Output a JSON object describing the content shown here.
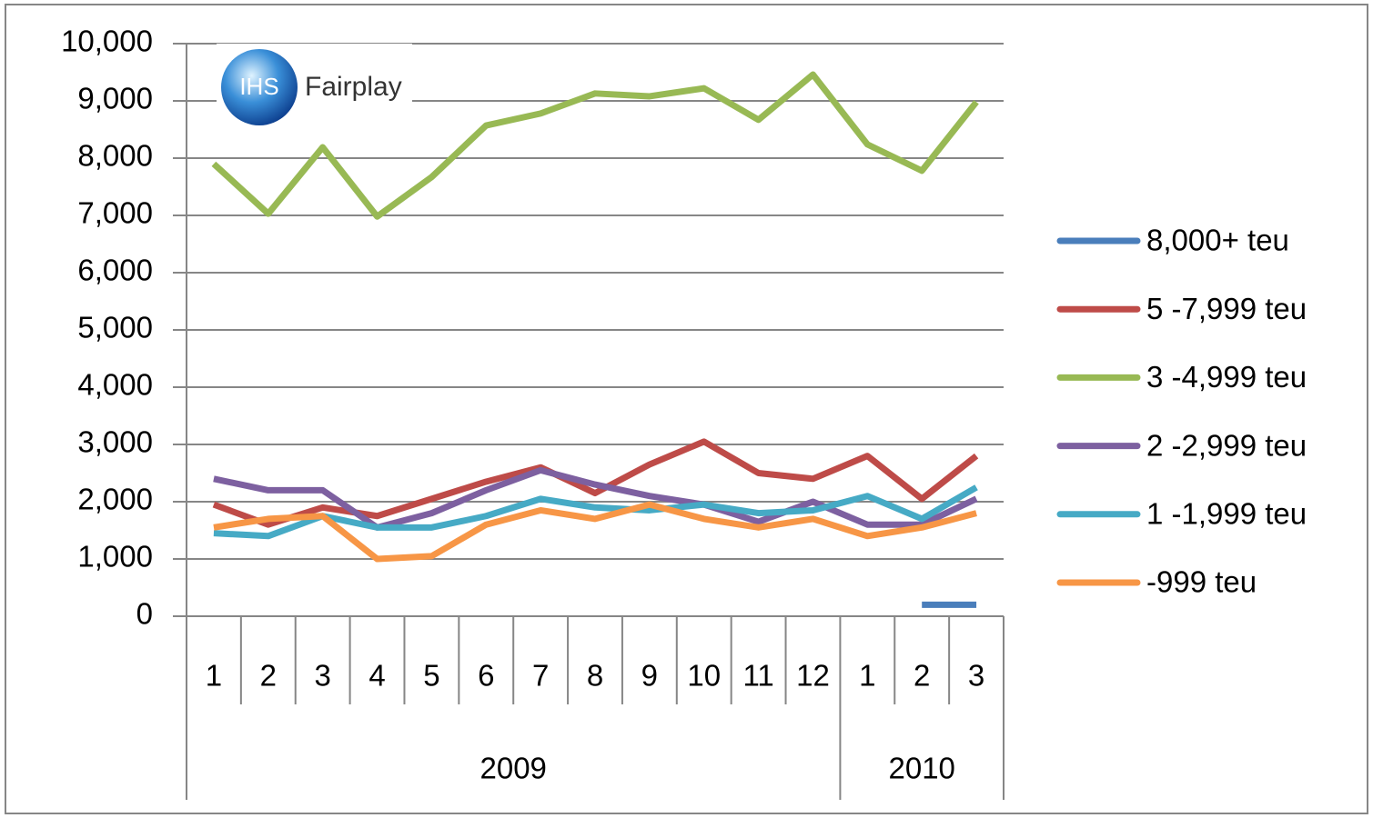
{
  "chart_data": {
    "type": "line",
    "logo": {
      "mark": "IHS",
      "name": "Fairplay"
    },
    "categories": [
      "1",
      "2",
      "3",
      "4",
      "5",
      "6",
      "7",
      "8",
      "9",
      "10",
      "11",
      "12",
      "1",
      "2",
      "3"
    ],
    "groups": [
      {
        "name": "2009",
        "span": 12
      },
      {
        "name": "2010",
        "span": 3
      }
    ],
    "ylim": [
      0,
      10000
    ],
    "yticks": [
      0,
      {
        "value": 1000,
        "label": "1,000"
      },
      {
        "value": 2000,
        "label": "2,000"
      },
      {
        "value": 3000,
        "label": "3,000"
      },
      {
        "value": 4000,
        "label": "4,000"
      },
      {
        "value": 5000,
        "label": "5,000"
      },
      {
        "value": 6000,
        "label": "6,000"
      },
      {
        "value": 7000,
        "label": "7,000"
      },
      {
        "value": 8000,
        "label": "8,000"
      },
      {
        "value": 9000,
        "label": "9,000"
      },
      {
        "value": 10000,
        "label": "10,000"
      }
    ],
    "grid": true,
    "legend": "right",
    "series": [
      {
        "name": "8,000+ teu",
        "color": "#4a7ebb",
        "values": [
          null,
          null,
          null,
          null,
          null,
          null,
          null,
          null,
          null,
          null,
          null,
          null,
          null,
          200,
          200
        ]
      },
      {
        "name": "5 -7,999 teu",
        "color": "#be4b48",
        "values": [
          1950,
          1600,
          1900,
          1750,
          2050,
          2350,
          2600,
          2150,
          2650,
          3050,
          2500,
          2400,
          2800,
          2050,
          2800
        ]
      },
      {
        "name": "3 -4,999 teu",
        "color": "#98b954",
        "values": [
          7900,
          7030,
          8190,
          6980,
          7670,
          8570,
          8780,
          9130,
          9080,
          9220,
          8670,
          9460,
          8240,
          7780,
          8980
        ]
      },
      {
        "name": "2 -2,999 teu",
        "color": "#7d60a0",
        "values": [
          2400,
          2200,
          2200,
          1550,
          1800,
          2200,
          2550,
          2300,
          2100,
          1950,
          1650,
          2000,
          1600,
          1600,
          2050
        ]
      },
      {
        "name": "1 -1,999 teu",
        "color": "#46aac5",
        "values": [
          1450,
          1400,
          1750,
          1550,
          1550,
          1750,
          2050,
          1900,
          1850,
          1950,
          1800,
          1850,
          2100,
          1700,
          2250
        ]
      },
      {
        "name": "-999 teu",
        "color": "#f79646",
        "values": [
          1550,
          1700,
          1750,
          1000,
          1050,
          1600,
          1850,
          1700,
          1950,
          1700,
          1550,
          1700,
          1400,
          1550,
          1800
        ]
      }
    ]
  }
}
